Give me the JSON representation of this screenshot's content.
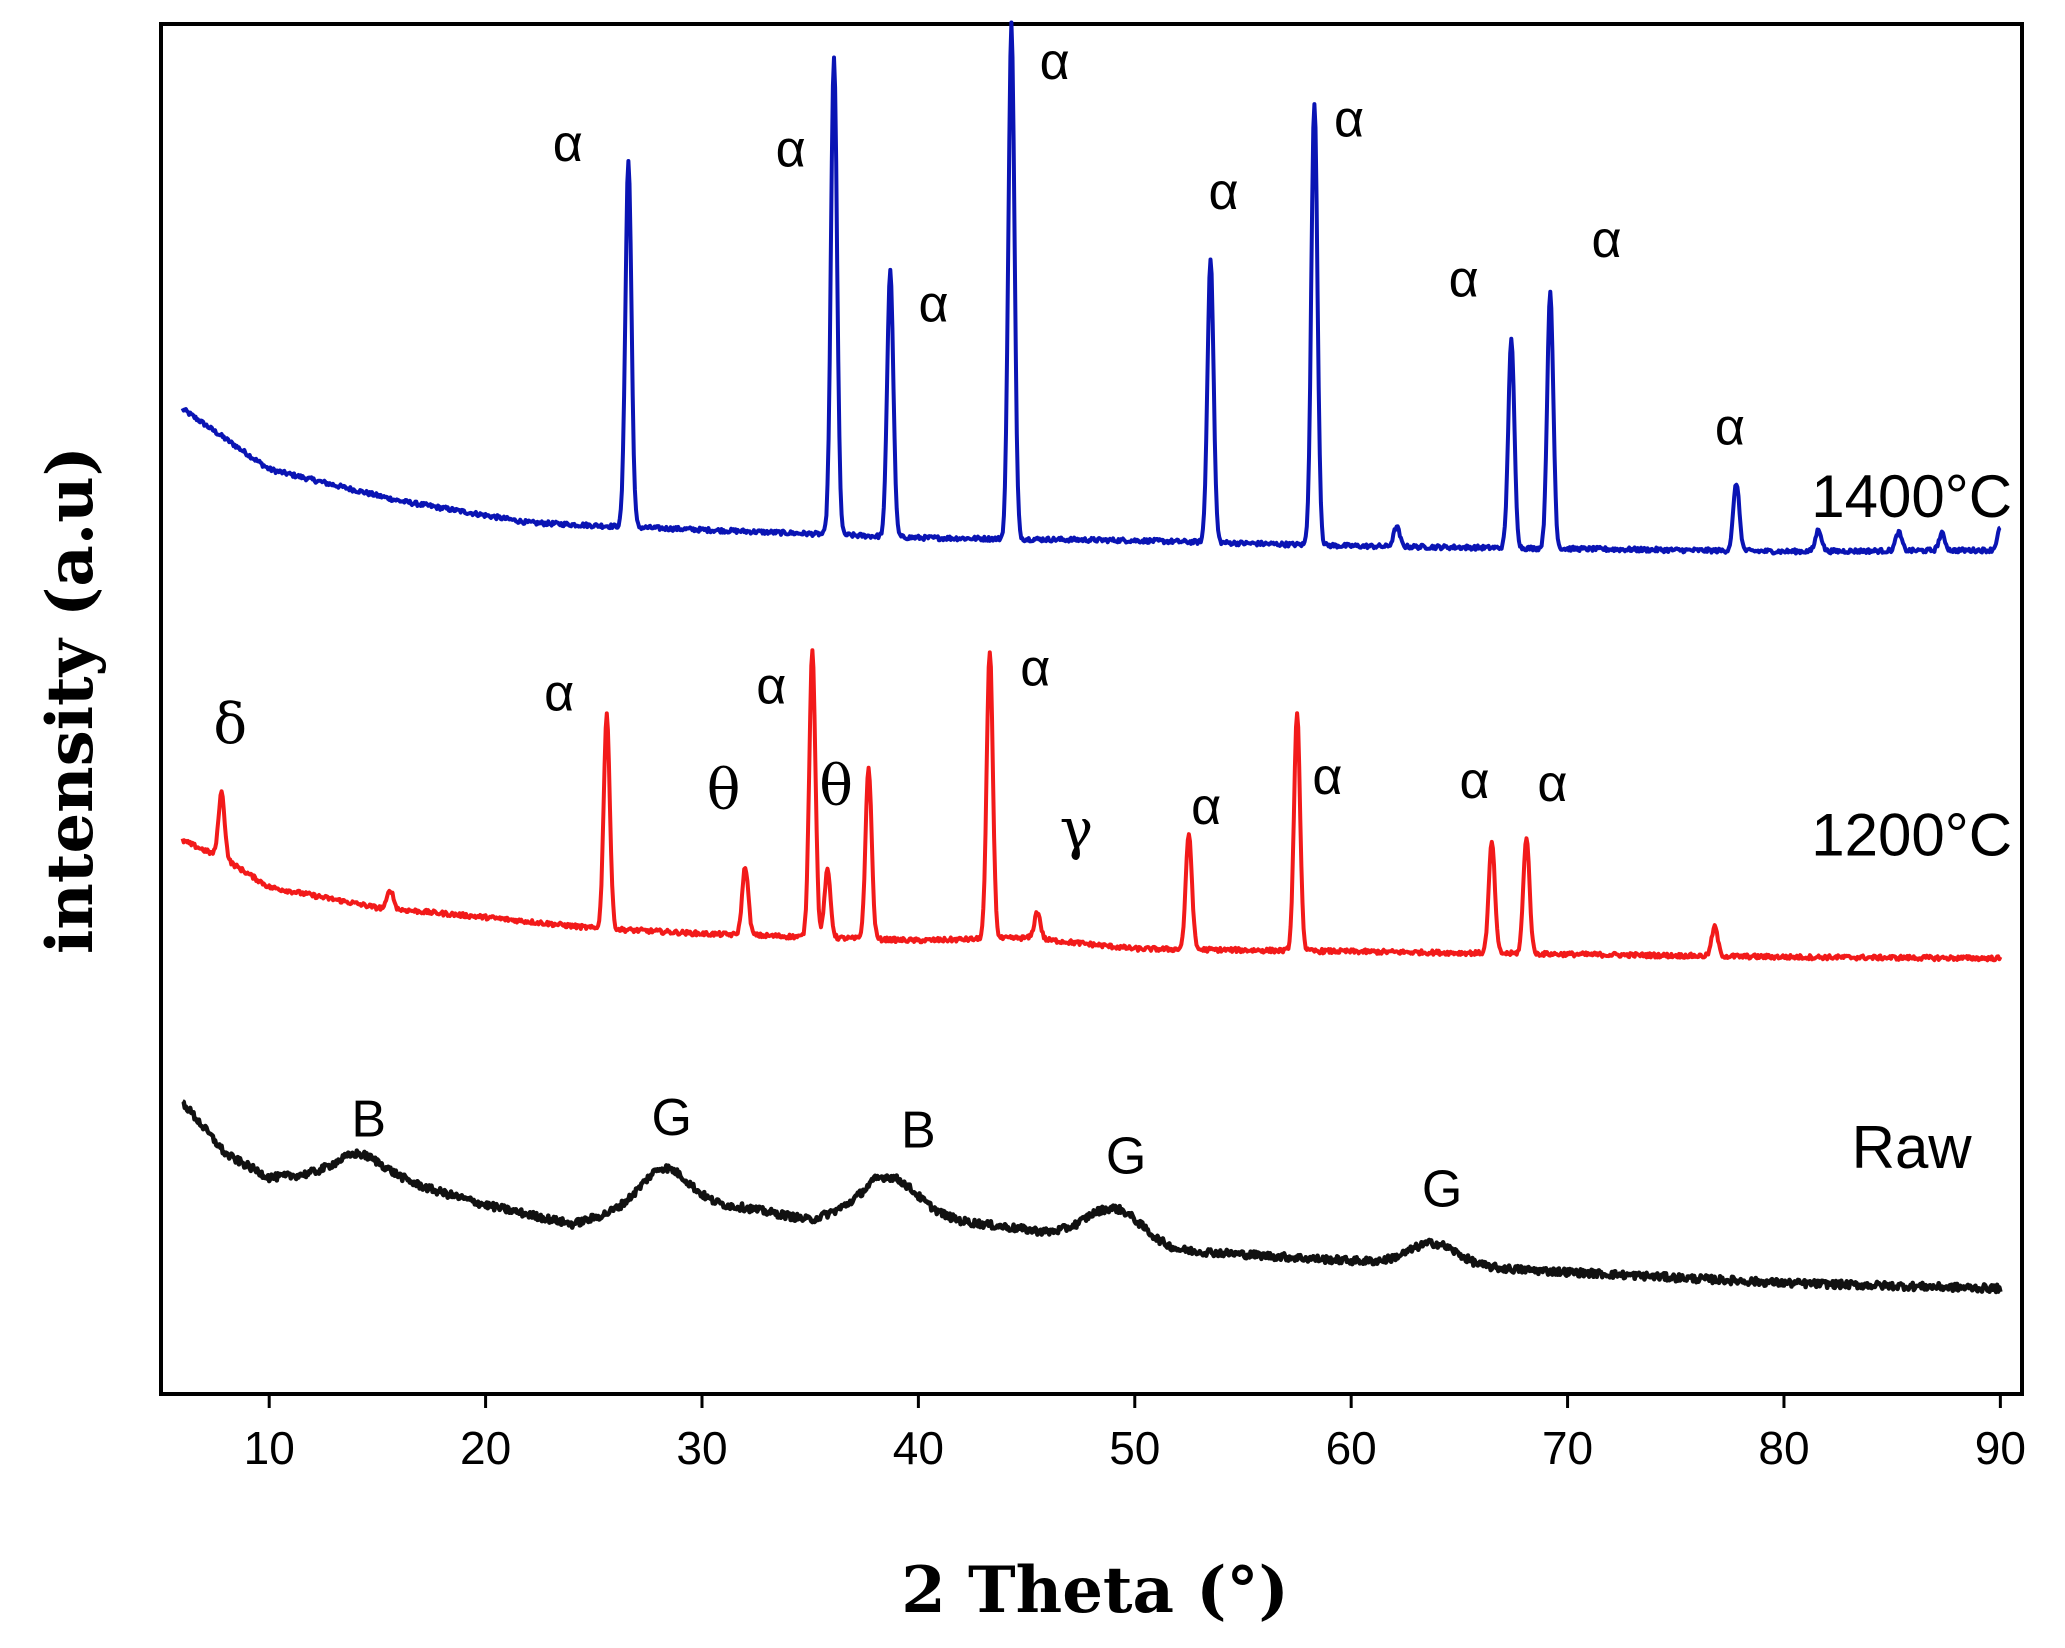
{
  "chart_data": {
    "type": "line",
    "title": "",
    "xlabel": "2 Theta (°)",
    "ylabel": "intensity (a.u)",
    "xlim": [
      5,
      91
    ],
    "ylim": [
      0,
      100
    ],
    "xticks": [
      10,
      20,
      30,
      40,
      50,
      60,
      70,
      80,
      90
    ],
    "grid": false,
    "series": [
      {
        "name": "1400°C",
        "color": "#0a14b4",
        "baseline": [
          [
            6,
            71.9
          ],
          [
            10,
            67.5
          ],
          [
            16,
            65.2
          ],
          [
            22,
            63.6
          ],
          [
            28,
            63.2
          ],
          [
            40,
            62.5
          ],
          [
            50,
            62.3
          ],
          [
            60,
            61.9
          ],
          [
            70,
            61.7
          ],
          [
            80,
            61.5
          ],
          [
            90,
            61.6
          ]
        ],
        "peaks": [
          {
            "x": 26.6,
            "y": 90,
            "label": "α"
          },
          {
            "x": 36.1,
            "y": 97.6,
            "label": "α"
          },
          {
            "x": 38.7,
            "y": 82.1,
            "label": "α"
          },
          {
            "x": 44.3,
            "y": 100,
            "label": "α"
          },
          {
            "x": 53.5,
            "y": 82.9,
            "label": "α"
          },
          {
            "x": 58.3,
            "y": 94.3,
            "label": "α"
          },
          {
            "x": 62.1,
            "y": 63.3,
            "label": ""
          },
          {
            "x": 67.4,
            "y": 76.9,
            "label": "α"
          },
          {
            "x": 69.2,
            "y": 80.4,
            "label": "α"
          },
          {
            "x": 77.8,
            "y": 66.5,
            "label": "α"
          },
          {
            "x": 81.6,
            "y": 63.1,
            "label": ""
          },
          {
            "x": 85.3,
            "y": 62.9,
            "label": ""
          },
          {
            "x": 87.3,
            "y": 62.8,
            "label": ""
          },
          {
            "x": 90.0,
            "y": 63.2,
            "label": ""
          }
        ]
      },
      {
        "name": "1200°C",
        "color": "#f21a1a",
        "baseline": [
          [
            6,
            40.4
          ],
          [
            8,
            39
          ],
          [
            10,
            37
          ],
          [
            15,
            35.5
          ],
          [
            20,
            34.8
          ],
          [
            25,
            34
          ],
          [
            30,
            33.6
          ],
          [
            40,
            33.1
          ],
          [
            45,
            33.3
          ],
          [
            50,
            32.5
          ],
          [
            60,
            32.3
          ],
          [
            70,
            32.1
          ],
          [
            80,
            31.9
          ],
          [
            90,
            31.8
          ]
        ],
        "peaks": [
          {
            "x": 7.8,
            "y": 43.9,
            "label": "δ"
          },
          {
            "x": 15.6,
            "y": 36.8,
            "label": ""
          },
          {
            "x": 25.6,
            "y": 49.6,
            "label": "α"
          },
          {
            "x": 32.0,
            "y": 38.5,
            "label": "θ"
          },
          {
            "x": 35.1,
            "y": 54.4,
            "label": "α"
          },
          {
            "x": 35.8,
            "y": 38.2,
            "label": "θ"
          },
          {
            "x": 37.7,
            "y": 45.7,
            "label": ""
          },
          {
            "x": 43.3,
            "y": 54.2,
            "label": "α"
          },
          {
            "x": 45.5,
            "y": 35.2,
            "label": "γ"
          },
          {
            "x": 52.5,
            "y": 40.9,
            "label": "α"
          },
          {
            "x": 57.5,
            "y": 49.6,
            "label": "α"
          },
          {
            "x": 66.5,
            "y": 40.3,
            "label": "α"
          },
          {
            "x": 68.1,
            "y": 40.7,
            "label": "α"
          },
          {
            "x": 76.8,
            "y": 34.1,
            "label": ""
          }
        ]
      },
      {
        "name": "Raw",
        "color": "#111111",
        "baseline": [
          [
            6,
            21.3
          ],
          [
            8,
            17.5
          ],
          [
            10,
            15.8
          ],
          [
            14,
            16.2
          ],
          [
            16,
            15.6
          ],
          [
            20,
            13.8
          ],
          [
            24,
            12.4
          ],
          [
            28,
            14.1
          ],
          [
            32,
            13.6
          ],
          [
            35,
            12.7
          ],
          [
            38,
            14.2
          ],
          [
            42,
            12.6
          ],
          [
            46,
            11.8
          ],
          [
            48,
            12.1
          ],
          [
            52,
            10.5
          ],
          [
            58,
            9.9
          ],
          [
            64,
            9.4
          ],
          [
            70,
            8.9
          ],
          [
            80,
            8.1
          ],
          [
            90,
            7.7
          ]
        ],
        "peaks": [
          {
            "x": 14.2,
            "y": 17.5,
            "label": "B"
          },
          {
            "x": 28.3,
            "y": 16.5,
            "label": "G"
          },
          {
            "x": 38.8,
            "y": 15.8,
            "label": "B"
          },
          {
            "x": 49.2,
            "y": 13.5,
            "label": "G"
          },
          {
            "x": 63.8,
            "y": 11,
            "label": "G"
          }
        ]
      }
    ]
  }
}
